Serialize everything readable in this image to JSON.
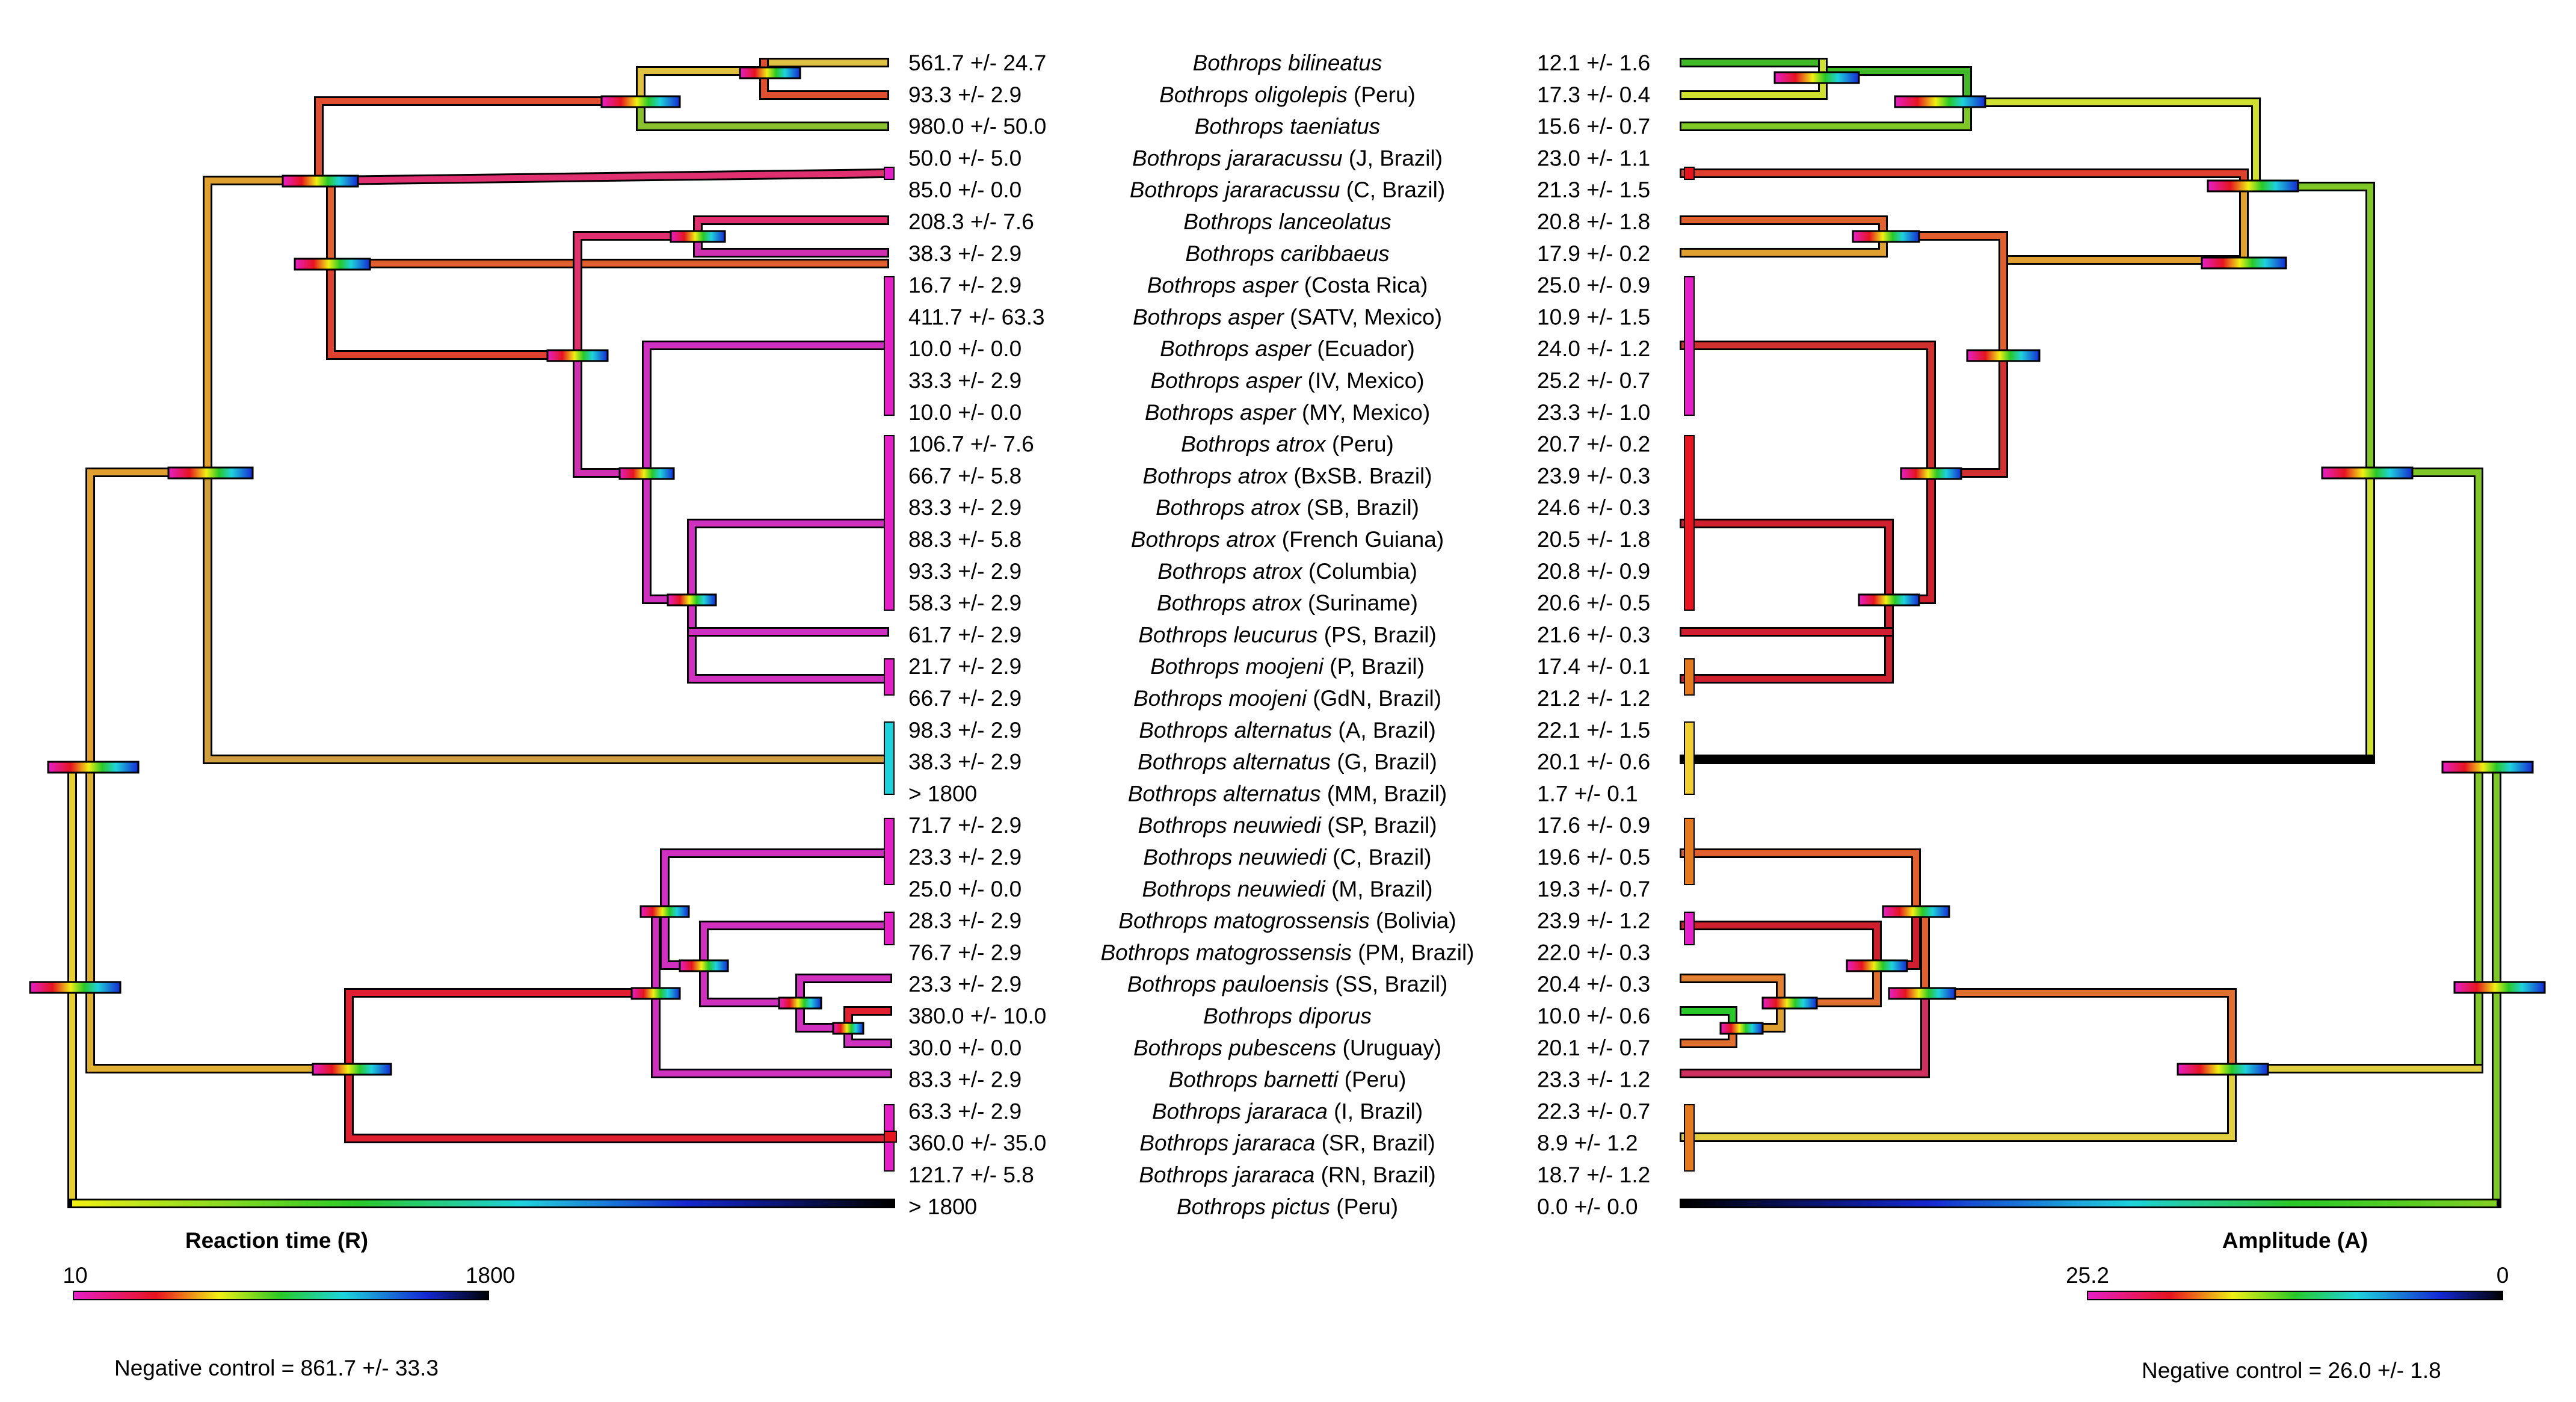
{
  "left_panel": {
    "title": "Reaction time (R)",
    "scale_min": "10",
    "scale_max": "1800",
    "negative_control": "Negative control = 861.7 +/- 33.3"
  },
  "right_panel": {
    "title": "Amplitude (A)",
    "scale_min": "25.2",
    "scale_max": "0",
    "negative_control": "Negative control = 26.0 +/- 1.8"
  },
  "colors": {
    "magenta": "#e61ec8",
    "red": "#e6141e",
    "orange": "#e6781e",
    "yellow": "#f0f014",
    "green": "#28c828",
    "cyan": "#1ed2dc",
    "blue": "#1428d2",
    "black": "#000000"
  },
  "taxa": [
    {
      "genus": "Bothrops",
      "species": "bilineatus",
      "locality": "",
      "r": "561.7 +/- 24.7",
      "a": "12.1 +/- 1.6"
    },
    {
      "genus": "Bothrops",
      "species": "oligolepis",
      "locality": " (Peru)",
      "r": "93.3 +/- 2.9",
      "a": "17.3 +/- 0.4"
    },
    {
      "genus": "Bothrops",
      "species": "taeniatus",
      "locality": "",
      "r": "980.0 +/- 50.0",
      "a": "15.6 +/- 0.7"
    },
    {
      "genus": "Bothrops",
      "species": "jararacussu",
      "locality": " (J, Brazil)",
      "r": "50.0 +/- 5.0",
      "a": "23.0 +/- 1.1"
    },
    {
      "genus": "Bothrops",
      "species": "jararacussu",
      "locality": " (C, Brazil)",
      "r": "85.0 +/- 0.0",
      "a": "21.3 +/- 1.5"
    },
    {
      "genus": "Bothrops",
      "species": "lanceolatus",
      "locality": "",
      "r": "208.3 +/- 7.6",
      "a": "20.8 +/- 1.8"
    },
    {
      "genus": "Bothrops",
      "species": "caribbaeus",
      "locality": "",
      "r": "38.3 +/- 2.9",
      "a": "17.9 +/- 0.2"
    },
    {
      "genus": "Bothrops",
      "species": "asper",
      "locality": " (Costa Rica)",
      "r": "16.7 +/- 2.9",
      "a": "25.0 +/- 0.9"
    },
    {
      "genus": "Bothrops",
      "species": "asper",
      "locality": " (SATV, Mexico)",
      "r": "411.7 +/- 63.3",
      "a": "10.9 +/- 1.5"
    },
    {
      "genus": "Bothrops",
      "species": "asper",
      "locality": " (Ecuador)",
      "r": "10.0 +/- 0.0",
      "a": "24.0 +/- 1.2"
    },
    {
      "genus": "Bothrops",
      "species": "asper",
      "locality": " (IV, Mexico)",
      "r": "33.3 +/- 2.9",
      "a": "25.2 +/- 0.7"
    },
    {
      "genus": "Bothrops",
      "species": "asper",
      "locality": " (MY, Mexico)",
      "r": "10.0 +/- 0.0",
      "a": "23.3 +/- 1.0"
    },
    {
      "genus": "Bothrops",
      "species": "atrox",
      "locality": " (Peru)",
      "r": "106.7 +/- 7.6",
      "a": "20.7 +/- 0.2"
    },
    {
      "genus": "Bothrops",
      "species": "atrox",
      "locality": " (BxSB. Brazil)",
      "r": "66.7 +/- 5.8",
      "a": "23.9 +/- 0.3"
    },
    {
      "genus": "Bothrops",
      "species": "atrox",
      "locality": " (SB, Brazil)",
      "r": "83.3 +/- 2.9",
      "a": "24.6 +/- 0.3"
    },
    {
      "genus": "Bothrops",
      "species": "atrox",
      "locality": " (French Guiana)",
      "r": "88.3 +/- 5.8",
      "a": "20.5 +/- 1.8"
    },
    {
      "genus": "Bothrops",
      "species": "atrox",
      "locality": " (Columbia)",
      "r": "93.3 +/- 2.9",
      "a": "20.8 +/- 0.9"
    },
    {
      "genus": "Bothrops",
      "species": "atrox",
      "locality": " (Suriname)",
      "r": "58.3 +/- 2.9",
      "a": "20.6 +/- 0.5"
    },
    {
      "genus": "Bothrops",
      "species": "leucurus",
      "locality": " (PS, Brazil)",
      "r": "61.7 +/- 2.9",
      "a": "21.6 +/- 0.3"
    },
    {
      "genus": "Bothrops",
      "species": "moojeni",
      "locality": " (P, Brazil)",
      "r": "21.7 +/- 2.9",
      "a": "17.4 +/- 0.1"
    },
    {
      "genus": "Bothrops",
      "species": "moojeni",
      "locality": " (GdN, Brazil)",
      "r": "66.7 +/- 2.9",
      "a": "21.2 +/- 1.2"
    },
    {
      "genus": "Bothrops",
      "species": "alternatus",
      "locality": " (A, Brazil)",
      "r": "98.3 +/- 2.9",
      "a": "22.1 +/- 1.5"
    },
    {
      "genus": "Bothrops",
      "species": "alternatus",
      "locality": " (G, Brazil)",
      "r": "38.3 +/- 2.9",
      "a": "20.1 +/- 0.6"
    },
    {
      "genus": "Bothrops",
      "species": "alternatus",
      "locality": " (MM, Brazil)",
      "r": "> 1800",
      "a": "1.7 +/- 0.1"
    },
    {
      "genus": "Bothrops",
      "species": "neuwiedi",
      "locality": " (SP, Brazil)",
      "r": "71.7 +/- 2.9",
      "a": "17.6 +/- 0.9"
    },
    {
      "genus": "Bothrops",
      "species": "neuwiedi",
      "locality": " (C, Brazil)",
      "r": "23.3 +/- 2.9",
      "a": "19.6 +/- 0.5"
    },
    {
      "genus": "Bothrops",
      "species": "neuwiedi",
      "locality": " (M, Brazil)",
      "r": "25.0 +/- 0.0",
      "a": "19.3 +/- 0.7"
    },
    {
      "genus": "Bothrops",
      "species": "matogrossensis",
      "locality": " (Bolivia)",
      "r": "28.3 +/- 2.9",
      "a": "23.9 +/- 1.2"
    },
    {
      "genus": "Bothrops",
      "species": "matogrossensis",
      "locality": " (PM, Brazil)",
      "r": "76.7 +/- 2.9",
      "a": "22.0 +/- 0.3"
    },
    {
      "genus": "Bothrops",
      "species": "pauloensis",
      "locality": " (SS, Brazil)",
      "r": "23.3 +/- 2.9",
      "a": "20.4 +/- 0.3"
    },
    {
      "genus": "Bothrops",
      "species": "diporus",
      "locality": "",
      "r": "380.0 +/- 10.0",
      "a": "10.0 +/- 0.6"
    },
    {
      "genus": "Bothrops",
      "species": "pubescens",
      "locality": " (Uruguay)",
      "r": "30.0 +/- 0.0",
      "a": "20.1 +/- 0.7"
    },
    {
      "genus": "Bothrops",
      "species": "barnetti",
      "locality": " (Peru)",
      "r": "83.3 +/- 2.9",
      "a": "23.3 +/- 1.2"
    },
    {
      "genus": "Bothrops",
      "species": "jararaca",
      "locality": " (I, Brazil)",
      "r": "63.3 +/- 2.9",
      "a": "22.3 +/- 0.7"
    },
    {
      "genus": "Bothrops",
      "species": "jararaca",
      "locality": " (SR, Brazil)",
      "r": "360.0 +/- 35.0",
      "a": "8.9 +/- 1.2"
    },
    {
      "genus": "Bothrops",
      "species": "jararaca",
      "locality": " (RN, Brazil)",
      "r": "121.7 +/- 5.8",
      "a": "18.7 +/- 1.2"
    },
    {
      "genus": "Bothrops",
      "species": "pictus",
      "locality": " (Peru)",
      "r": "> 1800",
      "a": "0.0 +/- 0.0"
    }
  ]
}
